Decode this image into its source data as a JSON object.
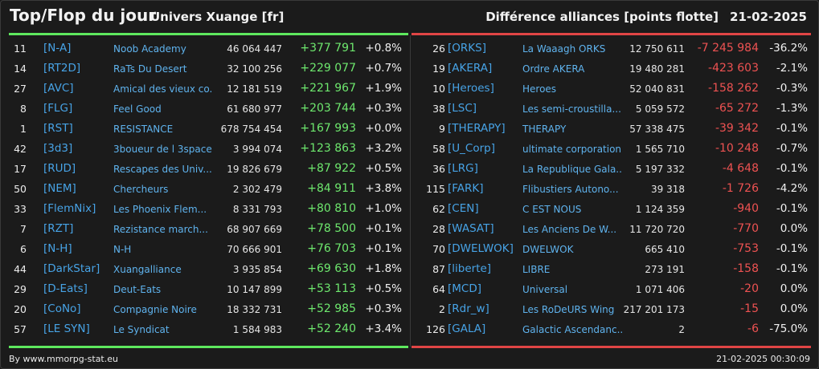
{
  "header": {
    "title": "Top/Flop du jour",
    "universe": "Univers Xuange [fr]",
    "metric": "Différence alliances [points flotte]",
    "date": "21-02-2025"
  },
  "colors": {
    "up": "#6ee86e",
    "down": "#ee5252",
    "tag": "#47a3e6",
    "top_bar": "#5ee85e",
    "flop_bar": "#e04545"
  },
  "top": [
    {
      "rank": "11",
      "tag": "[N-A]",
      "name": "Noob Academy",
      "points": "46 064 447",
      "diff": "+377 791",
      "pct": "+0.8%"
    },
    {
      "rank": "14",
      "tag": "[RT2D]",
      "name": "RaTs Du Desert",
      "points": "32 100 256",
      "diff": "+229 077",
      "pct": "+0.7%"
    },
    {
      "rank": "27",
      "tag": "[AVC]",
      "name": "Amical des vieux co...",
      "points": "12 181 519",
      "diff": "+221 967",
      "pct": "+1.9%"
    },
    {
      "rank": "8",
      "tag": "[FLG]",
      "name": "Feel Good",
      "points": "61 680 977",
      "diff": "+203 744",
      "pct": "+0.3%"
    },
    {
      "rank": "1",
      "tag": "[RST]",
      "name": "RESISTANCE",
      "points": "678 754 454",
      "diff": "+167 993",
      "pct": "+0.0%"
    },
    {
      "rank": "42",
      "tag": "[3d3]",
      "name": "3boueur de l 3space",
      "points": "3 994 074",
      "diff": "+123 863",
      "pct": "+3.2%"
    },
    {
      "rank": "17",
      "tag": "[RUD]",
      "name": "Rescapes des Univ...",
      "points": "19 826 679",
      "diff": "+87 922",
      "pct": "+0.5%"
    },
    {
      "rank": "50",
      "tag": "[NEM]",
      "name": "Chercheurs",
      "points": "2 302 479",
      "diff": "+84 911",
      "pct": "+3.8%"
    },
    {
      "rank": "33",
      "tag": "[FlemNix]",
      "name": "Les Phoenix Flem...",
      "points": "8 331 793",
      "diff": "+80 810",
      "pct": "+1.0%"
    },
    {
      "rank": "7",
      "tag": "[RZT]",
      "name": "Rezistance march...",
      "points": "68 907 669",
      "diff": "+78 500",
      "pct": "+0.1%"
    },
    {
      "rank": "6",
      "tag": "[N-H]",
      "name": "N-H",
      "points": "70 666 901",
      "diff": "+76 703",
      "pct": "+0.1%"
    },
    {
      "rank": "44",
      "tag": "[DarkStar]",
      "name": "Xuangalliance",
      "points": "3 935 854",
      "diff": "+69 630",
      "pct": "+1.8%"
    },
    {
      "rank": "29",
      "tag": "[D-Eats]",
      "name": "Deut-Eats",
      "points": "10 147 899",
      "diff": "+53 113",
      "pct": "+0.5%"
    },
    {
      "rank": "20",
      "tag": "[CoNo]",
      "name": "Compagnie Noire",
      "points": "18 332 731",
      "diff": "+52 985",
      "pct": "+0.3%"
    },
    {
      "rank": "57",
      "tag": "[LE SYN]",
      "name": "Le Syndicat",
      "points": "1 584 983",
      "diff": "+52 240",
      "pct": "+3.4%"
    }
  ],
  "flop": [
    {
      "rank": "26",
      "tag": "[ORKS]",
      "name": "La Waaagh ORKS",
      "points": "12 750 611",
      "diff": "-7 245 984",
      "pct": "-36.2%"
    },
    {
      "rank": "19",
      "tag": "[AKERA]",
      "name": "Ordre AKERA",
      "points": "19 480 281",
      "diff": "-423 603",
      "pct": "-2.1%"
    },
    {
      "rank": "10",
      "tag": "[Heroes]",
      "name": "Heroes",
      "points": "52 040 831",
      "diff": "-158 262",
      "pct": "-0.3%"
    },
    {
      "rank": "38",
      "tag": "[LSC]",
      "name": "Les semi-croustilla...",
      "points": "5 059 572",
      "diff": "-65 272",
      "pct": "-1.3%"
    },
    {
      "rank": "9",
      "tag": "[THERAPY]",
      "name": "THERAPY",
      "points": "57 338 475",
      "diff": "-39 342",
      "pct": "-0.1%"
    },
    {
      "rank": "58",
      "tag": "[U_Corp]",
      "name": "ultimate corporation",
      "points": "1 565 710",
      "diff": "-10 248",
      "pct": "-0.7%"
    },
    {
      "rank": "36",
      "tag": "[LRG]",
      "name": "La Republique Gala...",
      "points": "5 197 332",
      "diff": "-4 648",
      "pct": "-0.1%"
    },
    {
      "rank": "115",
      "tag": "[FARK]",
      "name": "Flibustiers Autono...",
      "points": "39 318",
      "diff": "-1 726",
      "pct": "-4.2%"
    },
    {
      "rank": "62",
      "tag": "[CEN]",
      "name": "C EST NOUS",
      "points": "1 124 359",
      "diff": "-940",
      "pct": "-0.1%"
    },
    {
      "rank": "28",
      "tag": "[WASAT]",
      "name": "Les Anciens De W...",
      "points": "11 720 720",
      "diff": "-770",
      "pct": "0.0%"
    },
    {
      "rank": "70",
      "tag": "[DWELWOK]",
      "name": "DWELWOK",
      "points": "665 410",
      "diff": "-753",
      "pct": "-0.1%"
    },
    {
      "rank": "87",
      "tag": "[liberte]",
      "name": "LIBRE",
      "points": "273 191",
      "diff": "-158",
      "pct": "-0.1%"
    },
    {
      "rank": "64",
      "tag": "[MCD]",
      "name": "Universal",
      "points": "1 071 406",
      "diff": "-20",
      "pct": "0.0%"
    },
    {
      "rank": "2",
      "tag": "[Rdr_w]",
      "name": "Les RoDeURS Wing",
      "points": "217 201 173",
      "diff": "-15",
      "pct": "0.0%"
    },
    {
      "rank": "126",
      "tag": "[GALA]",
      "name": "Galactic Ascendanc...",
      "points": "2",
      "diff": "-6",
      "pct": "-75.0%"
    }
  ],
  "footer": {
    "source": "By www.mmorpg-stat.eu",
    "timestamp": "21-02-2025 00:30:09"
  }
}
